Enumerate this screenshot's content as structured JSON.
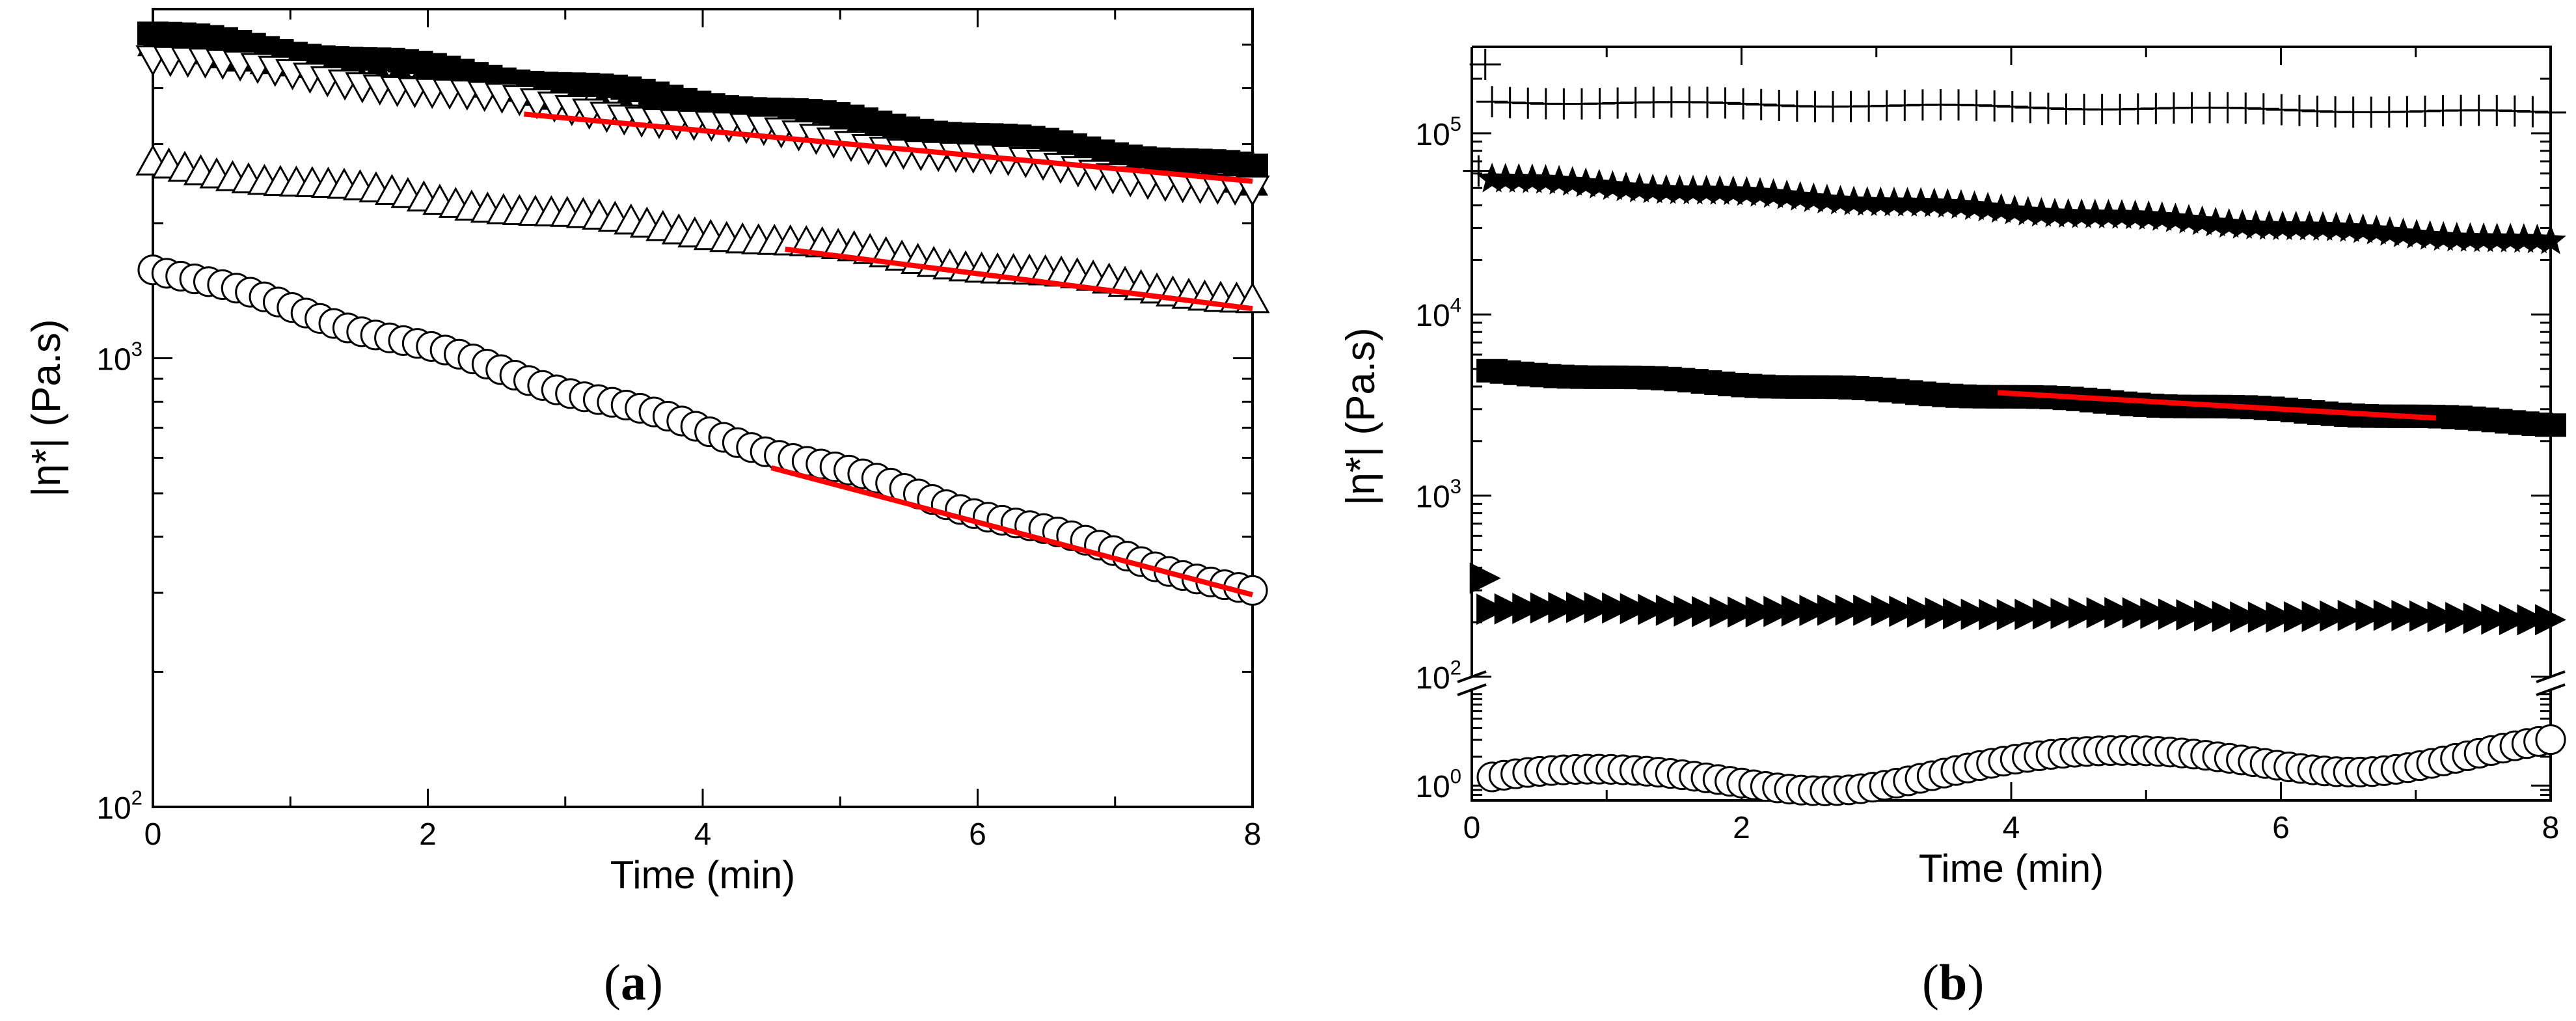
{
  "chart_data": [
    {
      "type": "scatter",
      "panel": "(a)",
      "panel_letter": "a",
      "xlabel": "Time (min)",
      "ylabel": "|η*| (Pa.s)",
      "y_scale": "log",
      "xlim": [
        0,
        8
      ],
      "ylim": [
        100,
        6000
      ],
      "x_ticks": [
        0,
        2,
        4,
        6,
        8
      ],
      "y_ticks": [
        {
          "value": 100,
          "label": "10",
          "exp": "2"
        },
        {
          "value": 1000,
          "label": "10",
          "exp": "3"
        }
      ],
      "series": [
        {
          "name": "filled squares",
          "marker": "square-filled",
          "start": 5300,
          "end": 2650,
          "n": 80
        },
        {
          "name": "filled up-triangles",
          "marker": "triangle-up-filled",
          "start": 5000,
          "end": 2500,
          "n": 50
        },
        {
          "name": "open down-triangles",
          "marker": "triangle-down-open",
          "start": 4700,
          "end": 2350,
          "n": 64
        },
        {
          "name": "open up-triangles",
          "marker": "triangle-up-open",
          "start": 2700,
          "end": 1350,
          "n": 70
        },
        {
          "name": "open circles",
          "marker": "circle-open",
          "start": 1600,
          "end": 300,
          "n": 80
        }
      ],
      "fits": [
        {
          "x": [
            2.7,
            8.0
          ],
          "y": [
            3500,
            2480
          ]
        },
        {
          "x": [
            4.6,
            8.0
          ],
          "y": [
            1750,
            1290
          ]
        },
        {
          "x": [
            4.5,
            8.0
          ],
          "y": [
            570,
            297
          ]
        }
      ]
    },
    {
      "type": "scatter",
      "panel": "(b)",
      "panel_letter": "b",
      "xlabel": "Time (min)",
      "ylabel": "|η*| (Pa.s)",
      "y_scale": "log (broken axis)",
      "xlim": [
        0,
        8
      ],
      "ylim_upper": [
        100,
        300000
      ],
      "ylim_lower": [
        0.7,
        10
      ],
      "x_ticks": [
        0,
        2,
        4,
        6,
        8
      ],
      "y_ticks": [
        {
          "value": 1,
          "label": "10",
          "exp": "0"
        },
        {
          "value": 100,
          "label": "10",
          "exp": "2"
        },
        {
          "value": 1000,
          "label": "10",
          "exp": "3"
        },
        {
          "value": 10000,
          "label": "10",
          "exp": "4"
        },
        {
          "value": 100000,
          "label": "10",
          "exp": "5"
        }
      ],
      "series": [
        {
          "name": "plus",
          "marker": "plus",
          "start": 150000,
          "end": 130000,
          "n": 60,
          "outliers": [
            {
              "x": 0.1,
              "y": 240000
            },
            {
              "x": 0.05,
              "y": 62000
            }
          ]
        },
        {
          "name": "stars",
          "marker": "star-filled",
          "start": 57000,
          "end": 25000,
          "n": 80
        },
        {
          "name": "filled squares",
          "marker": "square-filled",
          "start": 4900,
          "end": 2500,
          "n": 80
        },
        {
          "name": "right-triangles",
          "marker": "triangle-right-filled",
          "start": 240,
          "end": 210,
          "n": 60,
          "outliers": [
            {
              "x": 0.1,
              "y": 350
            }
          ]
        },
        {
          "name": "open circles",
          "marker": "circle-open",
          "start": 1.0,
          "end": 2.5,
          "n": 90
        }
      ],
      "fits": [
        {
          "x": [
            3.9,
            7.15
          ],
          "y": [
            3700,
            2680
          ]
        }
      ]
    }
  ]
}
